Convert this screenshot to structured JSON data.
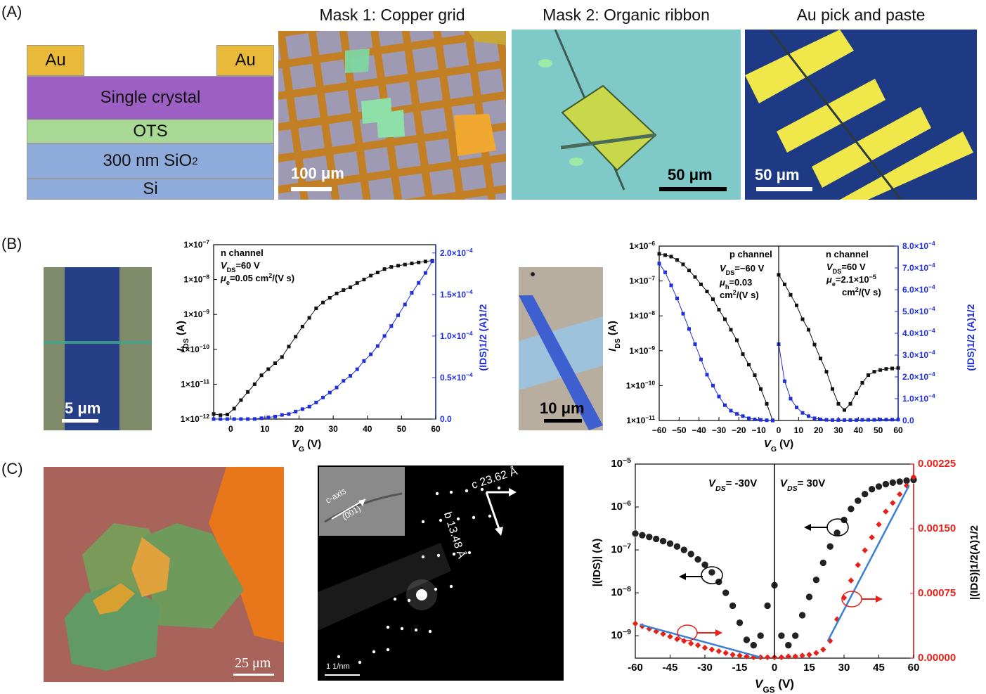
{
  "panels": {
    "a": "(A)",
    "b": "(B)",
    "c": "(C)"
  },
  "a": {
    "stack": {
      "au_left": "Au",
      "au_right": "Au",
      "crystal": "Single crystal",
      "ots": "OTS",
      "sio2_main": "300 nm SiO",
      "sio2_sub": "2",
      "si": "Si"
    },
    "images": [
      {
        "title": "Mask 1: Copper grid",
        "scale": "100 μm"
      },
      {
        "title": "Mask 2: Organic ribbon",
        "scale": "50 μm"
      },
      {
        "title": "Au pick and paste",
        "scale": "50 μm"
      }
    ]
  },
  "b": {
    "img1_scale": "5 μm",
    "img2_scale": "10 μm",
    "chart1": {
      "ann1": "n channel",
      "ann2_prefix": "V",
      "ann2_sub": "DS",
      "ann2_rest": "=60 V",
      "ann3_prefix": "μ",
      "ann3_sub": "e",
      "ann3_rest": "=0.05 cm",
      "ann3_sup": "2",
      "ann3_tail": "/(V s)",
      "xlabel_main": "V",
      "xlabel_sub": "G",
      "xlabel_unit": " (V)",
      "ylabel_main": "I",
      "ylabel_sub": "DS",
      "ylabel_unit": " (A)",
      "y2label": "(IDS)1/2 (A)1/2"
    },
    "chart2": {
      "left_ann1": "p channel",
      "left_ann2_prefix": "V",
      "left_ann2_sub": "DS",
      "left_ann2_rest": "=−60 V",
      "left_ann3_prefix": "μ",
      "left_ann3_sub": "h",
      "left_ann3_rest": "=0.03",
      "left_ann4_main": "cm",
      "left_ann4_sup": "2",
      "left_ann4_rest": "/(V s)",
      "right_ann1": "n channel",
      "right_ann2_prefix": "V",
      "right_ann2_sub": "DS",
      "right_ann2_rest": "=60 V",
      "right_ann3_prefix": "μ",
      "right_ann3_sub": "e",
      "right_ann3_rest": "=2.1×10",
      "right_ann3_sup": "−5",
      "right_ann4_main": "cm",
      "right_ann4_sup": "2",
      "right_ann4_rest": "/(V s)",
      "xlabel_main": "V",
      "xlabel_sub": "G",
      "xlabel_unit": " (V)",
      "ylabel_main": "I",
      "ylabel_sub": "DS",
      "ylabel_unit": " (A)",
      "y2label": "(IDS)1/2 (A)1/2"
    }
  },
  "c": {
    "img1_scale": "25 μm",
    "saed": {
      "c_label": "c 23.62 Å",
      "b_label": "b 13.48 Å",
      "inset_axis": "c-axis",
      "inset_plane": "(001)",
      "scale": "1 1/nm"
    },
    "chart3": {
      "ann_left_main": "V",
      "ann_left_sub": "DS",
      "ann_left_rest": "= -30V",
      "ann_right_main": "V",
      "ann_right_sub": "DS",
      "ann_right_rest": "= 30V",
      "xlabel_main": "V",
      "xlabel_sub": "GS",
      "xlabel_unit": " (V)",
      "ylabel": "|(IDS)| (A)",
      "y2label": "|(IDS)|1/2(A)1/2"
    }
  },
  "colors": {
    "black_series": "#111111",
    "blue_series": "#1f2fd9",
    "red_series": "#e8201a",
    "fit_line": "#3b7fd4",
    "au": "#e9b93a",
    "crystal": "#9c60c4",
    "ots": "#a8d995",
    "sio2": "#8fabdc"
  },
  "chart_data": [
    {
      "type": "line",
      "x": [
        -5,
        -3,
        -1,
        1,
        3,
        5,
        7,
        9,
        11,
        13,
        15,
        17,
        19,
        21,
        23,
        25,
        27,
        29,
        31,
        33,
        35,
        37,
        39,
        41,
        43,
        45,
        47,
        49,
        51,
        53,
        55,
        57,
        59
      ],
      "series": [
        {
          "axis": "left",
          "log": true,
          "values": [
            1.4e-12,
            1.3e-12,
            1.35e-12,
            2e-12,
            3.5e-12,
            6e-12,
            1e-11,
            1.8e-11,
            2.7e-11,
            4e-11,
            6e-11,
            1.2e-10,
            2.3e-10,
            4.5e-10,
            8e-10,
            1.5e-09,
            2.2e-09,
            3e-09,
            4e-09,
            5e-09,
            6e-09,
            8e-09,
            1e-08,
            1.3e-08,
            1.6e-08,
            2e-08,
            2.3e-08,
            2.5e-08,
            2.7e-08,
            2.9e-08,
            3.1e-08,
            3.3e-08,
            3.5e-08
          ]
        },
        {
          "axis": "right",
          "values": [
            0.0,
            0.0,
            0.0,
            0.0,
            0.0,
            0.0,
            1e-07,
            1e-06,
            2e-06,
            3e-06,
            5e-06,
            6e-06,
            9e-06,
            1.2e-05,
            1.5e-05,
            2e-05,
            2.6e-05,
            3.2e-05,
            3.8e-05,
            4.6e-05,
            5.2e-05,
            6e-05,
            7e-05,
            7.8e-05,
            8.8e-05,
            0.0001,
            0.000112,
            0.000125,
            0.000138,
            0.000152,
            0.000164,
            0.000176,
            0.00019
          ]
        }
      ],
      "xlim": [
        -5,
        60
      ],
      "ylim_left": [
        1e-12,
        1e-07
      ],
      "ylim_right": [
        0,
        0.00021
      ],
      "xticks": [
        "0",
        "10",
        "20",
        "30",
        "40",
        "50",
        "60"
      ],
      "yticks_left": [
        "1×10−12",
        "1×10−11",
        "1×10−10",
        "1×10−9",
        "1×10−8",
        "1×10−7"
      ],
      "yticks_right": [
        "0.0",
        "0.5×10−4",
        "1.0×10−4",
        "1.5×10−4",
        "2.0×10−4"
      ]
    },
    {
      "type": "line",
      "x": [
        -60,
        -57,
        -54,
        -51,
        -48,
        -45,
        -42,
        -39,
        -36,
        -33,
        -30,
        -27,
        -24,
        -21,
        -18,
        -15,
        -12,
        -9,
        -6,
        -3,
        0,
        3,
        6,
        9,
        12,
        15,
        18,
        21,
        24,
        27,
        30,
        33,
        36,
        39,
        42,
        45,
        48,
        51,
        54,
        57,
        60
      ],
      "series": [
        {
          "axis": "left",
          "log": true,
          "values": [
            6e-07,
            5.5e-07,
            5e-07,
            4e-07,
            3e-07,
            2e-07,
            1.3e-07,
            8e-08,
            5e-08,
            3e-08,
            1.5e-08,
            8e-09,
            4e-09,
            2e-09,
            8e-10,
            4e-10,
            2e-10,
            8e-11,
            3e-11,
            1e-11,
            1.5e-07,
            8e-08,
            4e-08,
            2e-08,
            8e-09,
            4e-09,
            1.5e-09,
            6e-10,
            2.5e-10,
            8e-11,
            3e-11,
            2e-11,
            3e-11,
            6e-11,
            1.2e-10,
            2e-10,
            2.5e-10,
            2.8e-10,
            3e-10,
            3.1e-10,
            3.2e-10
          ]
        },
        {
          "axis": "right",
          "values": [
            0.00072,
            0.00068,
            0.00062,
            0.00056,
            0.00049,
            0.00042,
            0.00035,
            0.00028,
            0.00021,
            0.00016,
            0.00011,
            7e-05,
            4.5e-05,
            3e-05,
            2e-05,
            1e-05,
            5e-06,
            3e-06,
            1e-06,
            1e-06,
            0.00035,
            0.00018,
            0.0001,
            6e-05,
            3.5e-05,
            2e-05,
            1e-05,
            5e-06,
            3e-06,
            2e-06,
            2e-06,
            2e-06,
            2e-06,
            2e-06,
            3e-06,
            3e-06,
            3e-06,
            4e-06,
            4e-06,
            4e-06,
            4e-06
          ]
        }
      ],
      "xlim": [
        -60,
        60
      ],
      "ylim_left": [
        1e-11,
        1e-06
      ],
      "ylim_right": [
        0,
        0.0008
      ],
      "xticks": [
        "−60",
        "−50",
        "−40",
        "−30",
        "−20",
        "−10",
        "0",
        "10",
        "20",
        "30",
        "40",
        "50",
        "60"
      ],
      "yticks_left": [
        "1×10−11",
        "1×10−10",
        "1×10−9",
        "1×10−8",
        "1×10−7",
        "1×10−6"
      ],
      "yticks_right": [
        "0.0",
        "1.0×10−4",
        "2.0×10−4",
        "3.0×10−4",
        "4.0×10−4",
        "5.0×10−4",
        "6.0×10−4",
        "7.0×10−4",
        "8.0×10−4"
      ]
    },
    {
      "type": "scatter",
      "x": [
        -60,
        -57,
        -54,
        -51,
        -48,
        -45,
        -42,
        -39,
        -36,
        -33,
        -30,
        -27,
        -24,
        -21,
        -18,
        -15,
        -12,
        -9,
        -6,
        -3,
        0,
        3,
        6,
        9,
        12,
        15,
        18,
        21,
        24,
        27,
        30,
        33,
        36,
        39,
        42,
        45,
        48,
        51,
        54,
        57,
        60
      ],
      "series": [
        {
          "axis": "left",
          "log": true,
          "values": [
            2.4e-07,
            2.2e-07,
            2e-07,
            1.8e-07,
            1.6e-07,
            1.4e-07,
            1.2e-07,
            1e-07,
            8e-08,
            6e-08,
            4.5e-08,
            3e-08,
            1.8e-08,
            1e-08,
            5e-09,
            2e-09,
            8e-10,
            6e-10,
            1e-09,
            5e-09,
            1.5e-08,
            1e-09,
            6e-10,
            1e-09,
            3e-09,
            8e-09,
            2e-08,
            5e-08,
            1.2e-07,
            2.5e-07,
            5e-07,
            9e-07,
            1.4e-06,
            2e-06,
            2.6e-06,
            3e-06,
            3.4e-06,
            3.7e-06,
            3.9e-06,
            4.1e-06,
            4.3e-06
          ]
        },
        {
          "axis": "right",
          "values": [
            0.0004,
            0.00037,
            0.00034,
            0.00031,
            0.00028,
            0.00025,
            0.00022,
            0.0002,
            0.00017,
            0.00015,
            0.00012,
            0.0001,
            8e-05,
            6e-05,
            4e-05,
            3e-05,
            2e-05,
            1e-05,
            1e-05,
            1e-05,
            1e-05,
            1e-05,
            2e-05,
            2e-05,
            3e-05,
            4e-05,
            6e-05,
            0.0001,
            0.0002,
            0.00045,
            0.0007,
            0.0009,
            0.00108,
            0.00125,
            0.0014,
            0.00155,
            0.0017,
            0.0018,
            0.0019,
            0.002,
            0.0021
          ]
        }
      ],
      "xlim": [
        -60,
        60
      ],
      "ylim_left": [
        3e-10,
        1e-05
      ],
      "ylim_right": [
        0,
        0.00225
      ],
      "xticks": [
        "-60",
        "-45",
        "-30",
        "-15",
        "0",
        "15",
        "30",
        "45",
        "60"
      ],
      "yticks_left": [
        "10−9",
        "10−8",
        "10−7",
        "10−6",
        "10−5"
      ],
      "yticks_right": [
        "0.00000",
        "0.00075",
        "0.00150",
        "0.00225"
      ]
    }
  ]
}
